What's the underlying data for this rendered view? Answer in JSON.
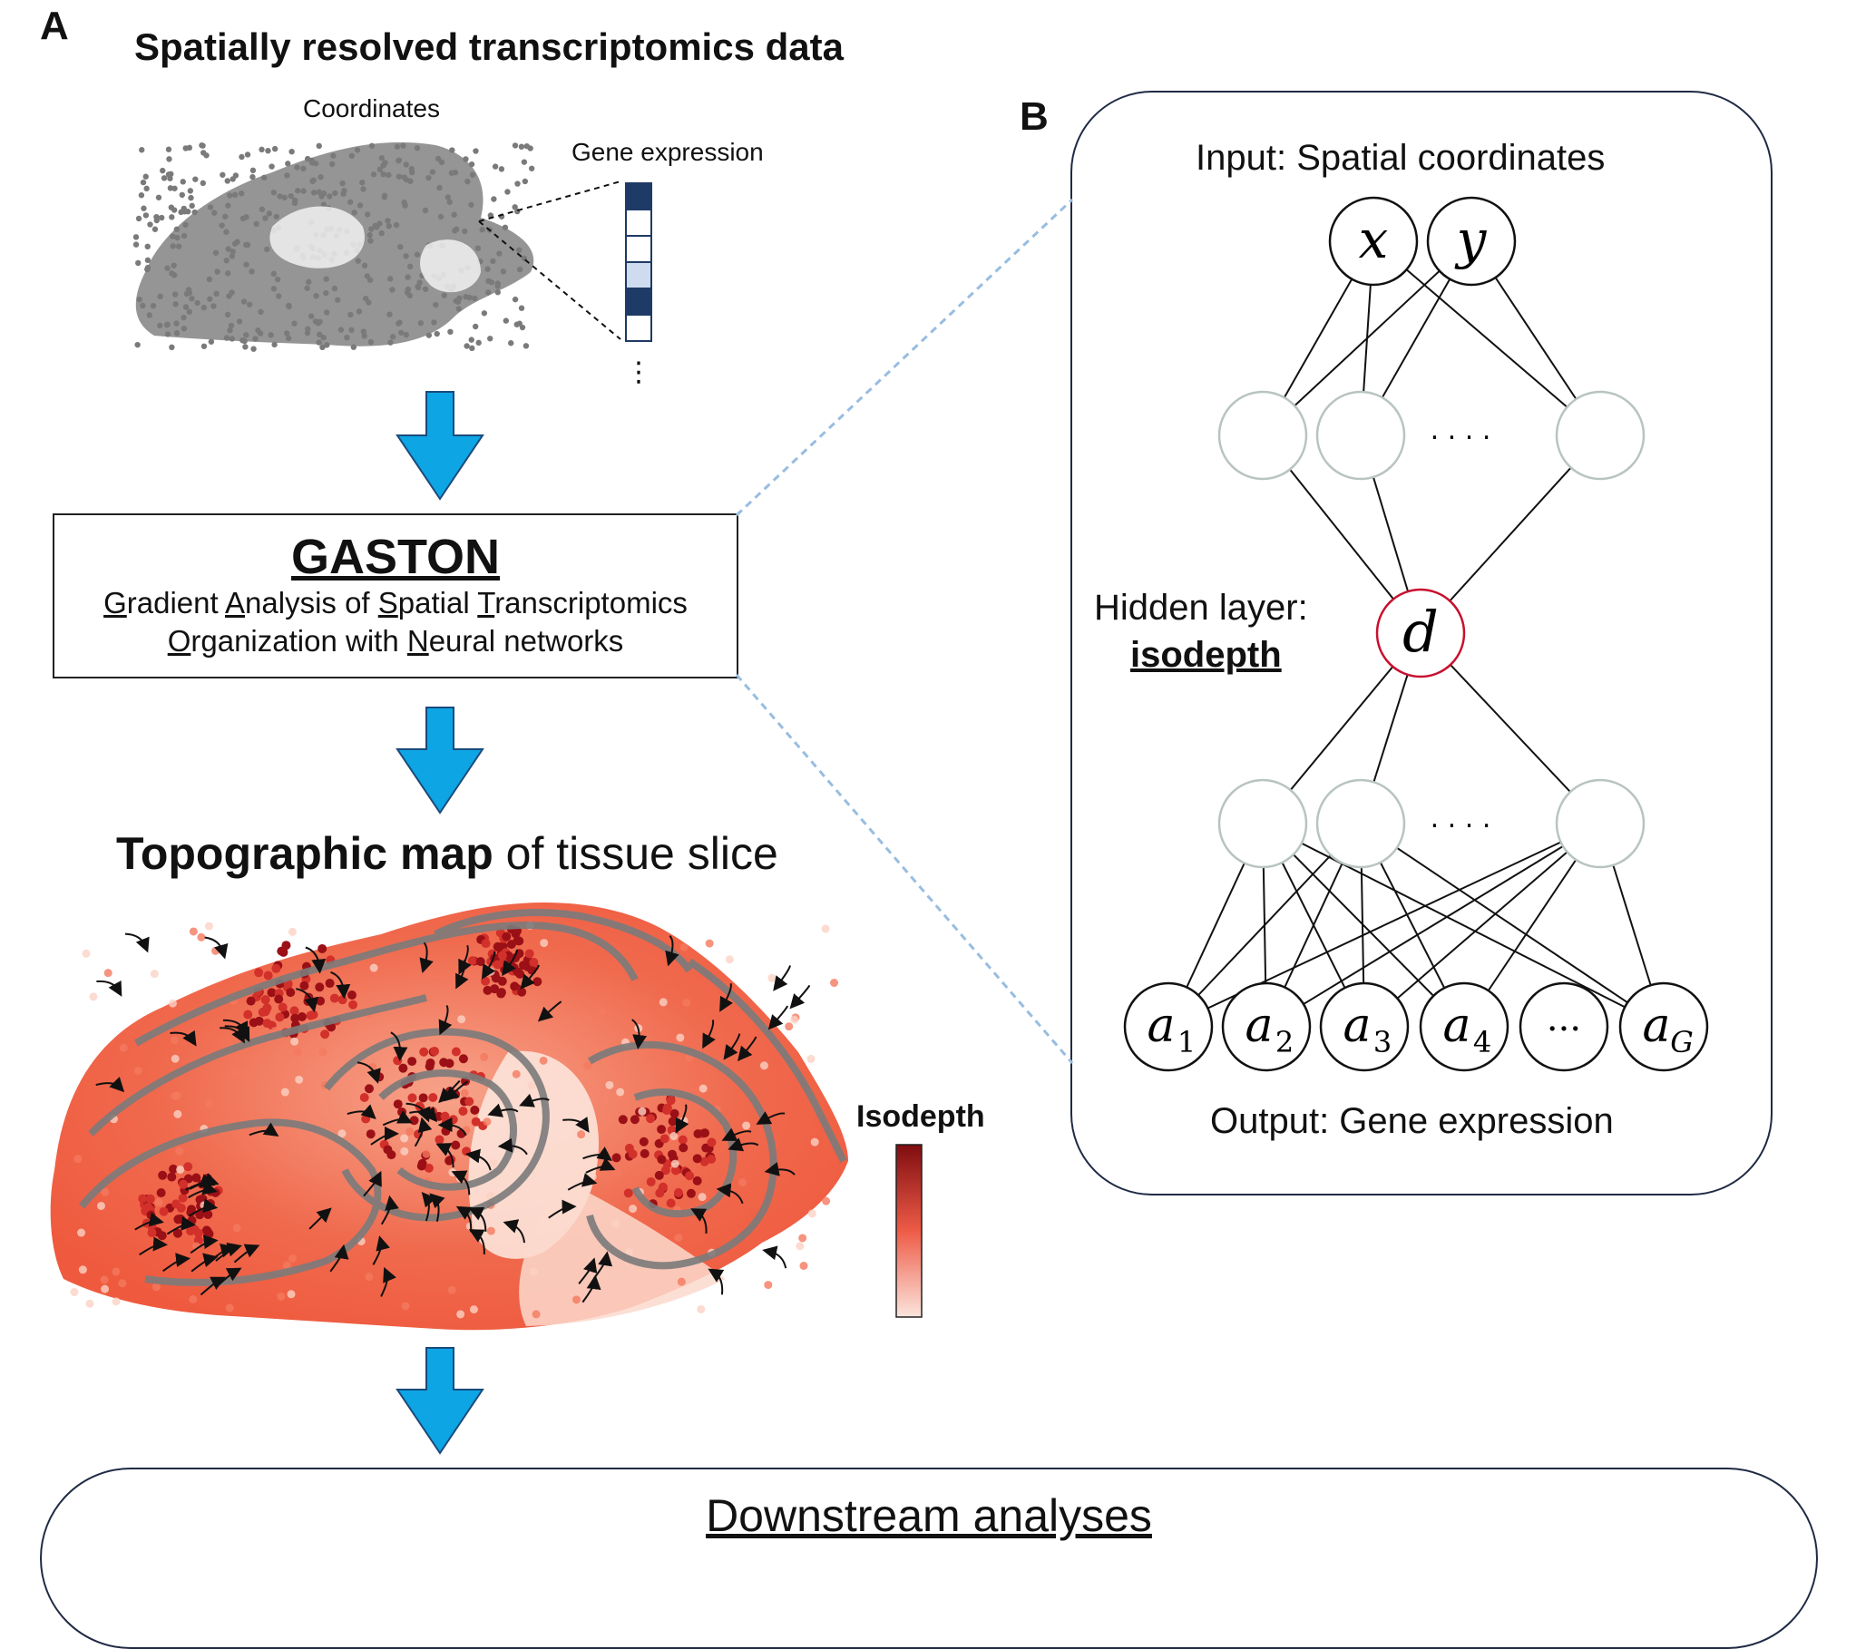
{
  "panel_a": {
    "letter": "A",
    "title": "Spatially resolved transcriptomics data",
    "coordinates_label": "Coordinates",
    "gene_expression_label": "Gene expression",
    "expression_cells": [
      "#1e3a66",
      "#ffffff",
      "#ffffff",
      "#cfdcef",
      "#1e3a66",
      "#ffffff"
    ],
    "ellipsis": "⋮",
    "gaston": {
      "title": "GASTON",
      "subtitle_line1_parts": [
        {
          "u": "G",
          "t": "radient "
        },
        {
          "u": "A",
          "t": "nalysis of "
        },
        {
          "u": "S",
          "t": "patial "
        },
        {
          "u": "T",
          "t": "ranscriptomics"
        }
      ],
      "subtitle_line2_parts": [
        {
          "u": "O",
          "t": "rganization with "
        },
        {
          "u": "N",
          "t": "eural networks"
        }
      ]
    },
    "topo_title_bold": "Topographic map",
    "topo_title_rest": " of tissue slice",
    "isodepth_legend_label": "Isodepth",
    "colorbar_top": "#7f0d10",
    "colorbar_mid": "#ee5b47",
    "colorbar_bottom": "#fbe5dc",
    "arrow_color": "#0ea5e4"
  },
  "panel_b": {
    "letter": "B",
    "input_label": "Input: Spatial coordinates",
    "input_nodes": [
      "x",
      "y"
    ],
    "hidden_label": "Hidden layer:",
    "hidden_label_bold": "isodepth",
    "hidden_node": "d",
    "output_label": "Output: Gene expression",
    "output_nodes": [
      {
        "base": "a",
        "sub": "1"
      },
      {
        "base": "a",
        "sub": "2"
      },
      {
        "base": "a",
        "sub": "3"
      },
      {
        "base": "a",
        "sub": "4"
      },
      {
        "base": "···",
        "sub": ""
      },
      {
        "base": "a",
        "sub": "G"
      }
    ],
    "layer_ellipsis": ". . . .",
    "hidden_node_color": "#c8102e",
    "faded_node_color": "#b8c4c0"
  },
  "downstream": {
    "title": "Downstream analyses"
  }
}
